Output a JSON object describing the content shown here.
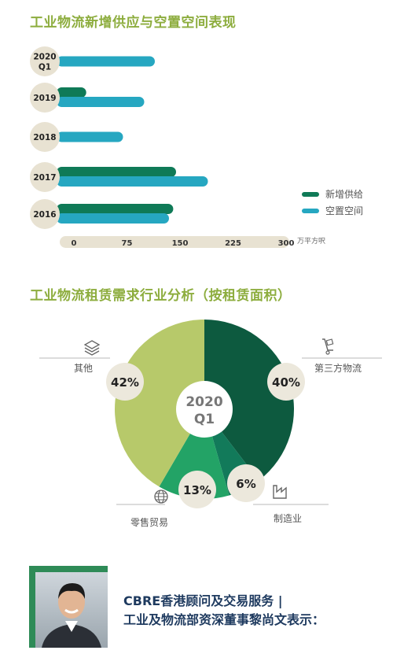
{
  "bar_section": {
    "title": "工业物流新增供应与空置空间表现",
    "unit": "万平方呎"
  },
  "donut_section": {
    "title": "工业物流租赁需求行业分析（按租赁面积）",
    "center_label": [
      "2020",
      "Q1"
    ]
  },
  "legend": [
    {
      "name": "新增供给",
      "color": "#0f7a57"
    },
    {
      "name": "空置空间",
      "color": "#26a7c1"
    }
  ],
  "icons": [
    "layers-icon",
    "hand-truck-icon",
    "factory-icon",
    "globe-icon"
  ],
  "colors": {
    "title_green": "#8dad3e",
    "beige": "#e8e2d2",
    "dark_green": "#0d5a3f",
    "mid_green": "#127a5a",
    "bright_green": "#23a366",
    "olive": "#b7c96a"
  },
  "person": {
    "quote": [
      "CBRE香港顾问及交易服务 |",
      "工业及物流部资深董事黎尚文表示："
    ]
  },
  "chart_data": [
    {
      "type": "bar",
      "orientation": "horizontal",
      "title": "工业物流新增供应与空置空间表现",
      "categories": [
        "2020 Q1",
        "2019",
        "2018",
        "2017",
        "2016"
      ],
      "category_lines": [
        [
          "2020",
          "Q1"
        ],
        [
          "2019"
        ],
        [
          "2018"
        ],
        [
          "2017"
        ],
        [
          "2016"
        ]
      ],
      "series": [
        {
          "name": "新增供给",
          "values": [
            0,
            33,
            0,
            160,
            156
          ]
        },
        {
          "name": "空置空间",
          "values": [
            130,
            115,
            85,
            205,
            150
          ]
        }
      ],
      "xlim": [
        0,
        300
      ],
      "xticks": [
        0,
        75,
        150,
        225,
        300
      ],
      "xlabel": "万平方呎",
      "legend_position": "right"
    },
    {
      "type": "pie",
      "variant": "donut",
      "title": "工业物流租赁需求行业分析（按租赁面积）",
      "slices": [
        {
          "label": "第三方物流",
          "value": 40,
          "display": "40%",
          "color": "#0d5a3f"
        },
        {
          "label": "制造业",
          "value": 6,
          "display": "6%",
          "color": "#127a5a"
        },
        {
          "label": "零售贸易",
          "value": 13,
          "display": "13%",
          "color": "#23a366"
        },
        {
          "label": "其他",
          "value": 42,
          "display": "42%",
          "color": "#b7c96a"
        }
      ]
    }
  ]
}
